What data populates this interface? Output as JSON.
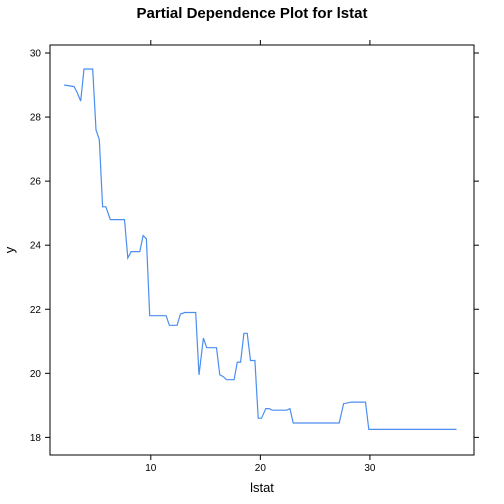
{
  "chart_data": {
    "type": "line",
    "title": "Partial Dependence Plot for lstat",
    "xlabel": "lstat",
    "ylabel": "y",
    "xlim": [
      0.8,
      39.5
    ],
    "ylim": [
      17.45,
      30.25
    ],
    "x_ticks": [
      10,
      20,
      30
    ],
    "y_ticks": [
      18,
      20,
      22,
      24,
      26,
      28,
      30
    ],
    "x_tick_labels": [
      "10",
      "20",
      "30"
    ],
    "y_tick_labels": [
      "18",
      "20",
      "22",
      "24",
      "26",
      "28",
      "30"
    ],
    "grid": false,
    "legend": "none",
    "line_color": "#4b8ef0",
    "series": [
      {
        "x": [
          2.1,
          3.0,
          3.3,
          3.6,
          3.9,
          4.7,
          5.0,
          5.3,
          5.6,
          5.9,
          6.3,
          6.6,
          7.3,
          7.6,
          7.9,
          8.2,
          8.6,
          9.0,
          9.3,
          9.6,
          9.9,
          11.4,
          11.7,
          12.4,
          12.7,
          13.1,
          14.1,
          14.4,
          14.8,
          15.1,
          16.0,
          16.3,
          16.6,
          16.9,
          17.6,
          17.9,
          18.2,
          18.5,
          18.8,
          19.1,
          19.5,
          19.8,
          20.1,
          20.5,
          20.8,
          21.1,
          22.4,
          22.7,
          23.0,
          25.0,
          25.3,
          27.2,
          27.6,
          28.3,
          29.6,
          29.9,
          37.9
        ],
        "y": [
          29.0,
          28.95,
          28.75,
          28.5,
          29.5,
          29.5,
          27.6,
          27.3,
          25.2,
          25.2,
          24.8,
          24.8,
          24.8,
          24.8,
          23.6,
          23.8,
          23.8,
          23.8,
          24.3,
          24.2,
          21.8,
          21.8,
          21.5,
          21.5,
          21.85,
          21.9,
          21.9,
          19.95,
          21.1,
          20.8,
          20.8,
          19.95,
          19.9,
          19.8,
          19.8,
          20.35,
          20.35,
          21.25,
          21.25,
          20.4,
          20.4,
          18.6,
          18.6,
          18.9,
          18.9,
          18.85,
          18.85,
          18.9,
          18.45,
          18.45,
          18.45,
          18.45,
          19.05,
          19.1,
          19.1,
          18.25,
          18.25
        ]
      }
    ]
  }
}
